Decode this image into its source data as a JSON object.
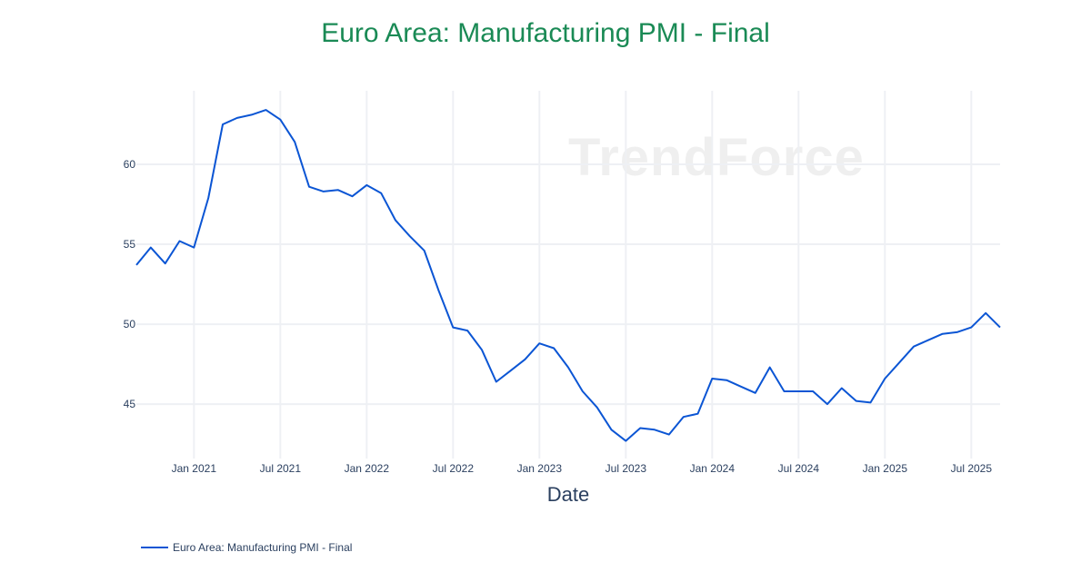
{
  "chart_data": {
    "type": "line",
    "title": "Euro Area: Manufacturing PMI - Final",
    "xlabel": "Date",
    "ylabel": "",
    "watermark": "TrendForce",
    "ylim": [
      41.6,
      64.6
    ],
    "yticks": [
      45,
      50,
      55,
      60
    ],
    "xticks": [
      "Jan 2021",
      "Jul 2021",
      "Jan 2022",
      "Jul 2022",
      "Jan 2023",
      "Jul 2023",
      "Jan 2024",
      "Jul 2024",
      "Jan 2025",
      "Jul 2025"
    ],
    "grid": true,
    "legend_position": "bottom-left",
    "series": [
      {
        "name": "Euro Area: Manufacturing PMI - Final",
        "color": "#0b55d4",
        "start": "2020-09",
        "x": [
          "2020-09",
          "2020-10",
          "2020-11",
          "2020-12",
          "2021-01",
          "2021-02",
          "2021-03",
          "2021-04",
          "2021-05",
          "2021-06",
          "2021-07",
          "2021-08",
          "2021-09",
          "2021-10",
          "2021-11",
          "2021-12",
          "2022-01",
          "2022-02",
          "2022-03",
          "2022-04",
          "2022-05",
          "2022-06",
          "2022-07",
          "2022-08",
          "2022-09",
          "2022-10",
          "2022-11",
          "2022-12",
          "2023-01",
          "2023-02",
          "2023-03",
          "2023-04",
          "2023-05",
          "2023-06",
          "2023-07",
          "2023-08",
          "2023-09",
          "2023-10",
          "2023-11",
          "2023-12",
          "2024-01",
          "2024-02",
          "2024-03",
          "2024-04",
          "2024-05",
          "2024-06",
          "2024-07",
          "2024-08",
          "2024-09",
          "2024-10",
          "2024-11",
          "2024-12",
          "2025-01",
          "2025-02",
          "2025-03",
          "2025-04",
          "2025-05",
          "2025-06",
          "2025-07",
          "2025-08",
          "2025-09"
        ],
        "values": [
          53.7,
          54.8,
          53.8,
          55.2,
          54.8,
          57.9,
          62.5,
          62.9,
          63.1,
          63.4,
          62.8,
          61.4,
          58.6,
          58.3,
          58.4,
          58.0,
          58.7,
          58.2,
          56.5,
          55.5,
          54.6,
          52.1,
          49.8,
          49.6,
          48.4,
          46.4,
          47.1,
          47.8,
          48.8,
          48.5,
          47.3,
          45.8,
          44.8,
          43.4,
          42.7,
          43.5,
          43.4,
          43.1,
          44.2,
          44.4,
          46.6,
          46.5,
          46.1,
          45.7,
          47.3,
          45.8,
          45.8,
          45.8,
          45.0,
          46.0,
          45.2,
          45.1,
          46.6,
          47.6,
          48.6,
          49.0,
          49.4,
          49.5,
          49.8,
          50.7,
          49.8
        ]
      }
    ]
  }
}
